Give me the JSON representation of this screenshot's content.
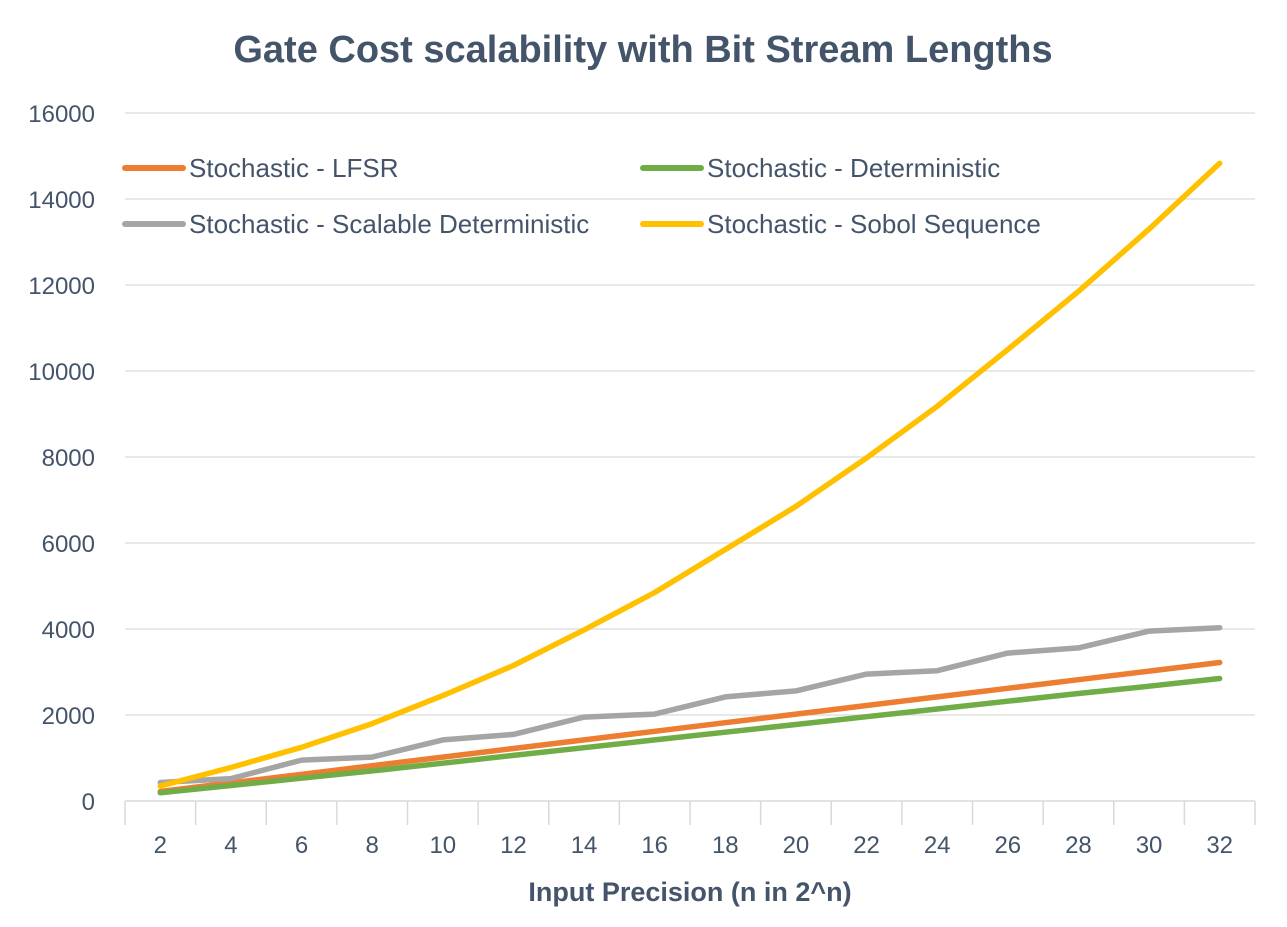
{
  "chart_data": {
    "type": "line",
    "title": "Gate Cost scalability with Bit Stream Lengths",
    "xlabel": "Input Precision (n in 2^n)",
    "ylabel": "",
    "categories": [
      "2",
      "4",
      "6",
      "8",
      "10",
      "12",
      "14",
      "16",
      "18",
      "20",
      "22",
      "24",
      "26",
      "28",
      "30",
      "32"
    ],
    "ylim": [
      0,
      16000
    ],
    "yticks": [
      "0",
      "2000",
      "4000",
      "6000",
      "8000",
      "10000",
      "12000",
      "14000",
      "16000"
    ],
    "grid": true,
    "legend_position": "top-left",
    "series": [
      {
        "name": "Stochastic - LFSR",
        "color": "#ed7d31",
        "values": [
          220,
          420,
          620,
          820,
          1020,
          1220,
          1420,
          1620,
          1820,
          2020,
          2220,
          2420,
          2620,
          2820,
          3020,
          3220
        ]
      },
      {
        "name": "Stochastic - Deterministic",
        "color": "#70ad47",
        "values": [
          190,
          360,
          530,
          700,
          880,
          1060,
          1240,
          1420,
          1600,
          1780,
          1960,
          2140,
          2320,
          2500,
          2670,
          2850
        ]
      },
      {
        "name": "Stochastic - Scalable Deterministic",
        "color": "#a5a5a5",
        "values": [
          430,
          520,
          950,
          1020,
          1420,
          1550,
          1950,
          2020,
          2420,
          2560,
          2950,
          3030,
          3440,
          3560,
          3950,
          4030
        ]
      },
      {
        "name": "Stochastic - Sobol Sequence",
        "color": "#ffc000",
        "values": [
          350,
          780,
          1250,
          1800,
          2450,
          3150,
          3980,
          4850,
          5850,
          6850,
          7980,
          9180,
          10500,
          11850,
          13300,
          14830
        ]
      }
    ]
  }
}
